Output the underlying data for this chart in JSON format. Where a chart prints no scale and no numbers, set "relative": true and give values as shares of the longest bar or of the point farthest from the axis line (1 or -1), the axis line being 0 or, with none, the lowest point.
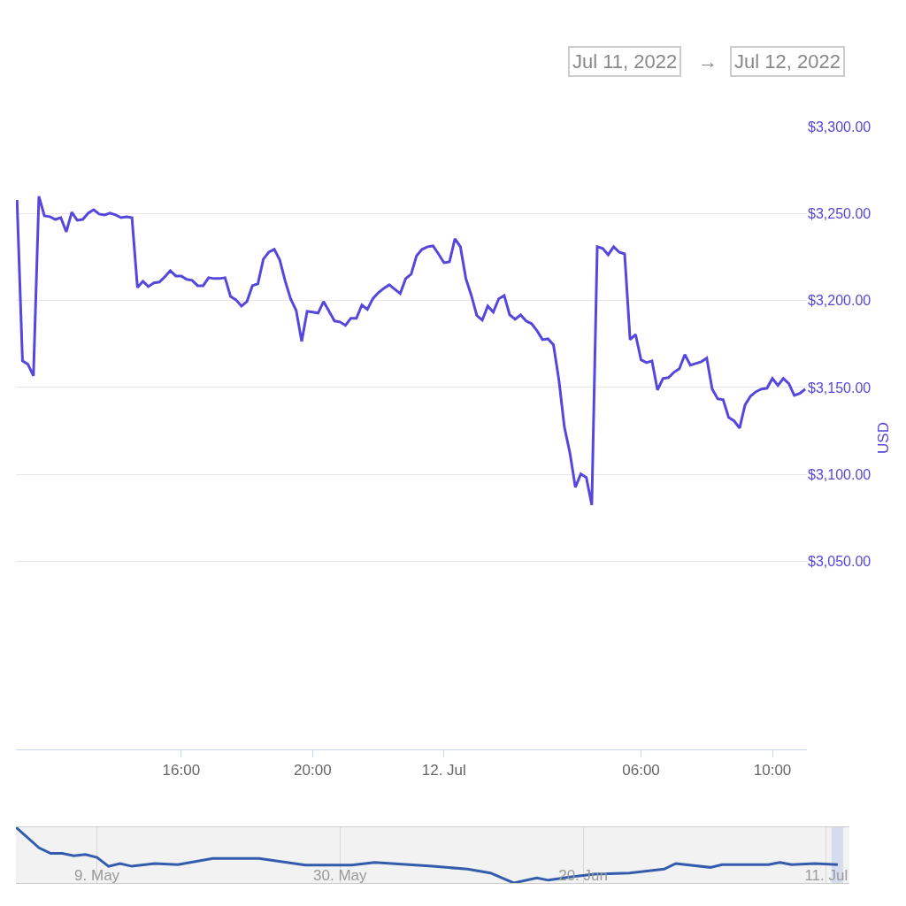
{
  "chart_data": [
    {
      "type": "line",
      "ylabel": "USD",
      "annotations": [
        "Jul 11, 2022",
        "→",
        "Jul 12, 2022"
      ],
      "grid": "y",
      "marker": "none",
      "line_style": "solid",
      "xlim": [
        "2022-07-11T10:58",
        "2022-07-12T11:03"
      ],
      "xticks": [
        {
          "value": "2022-07-11T16:00",
          "label": "16:00"
        },
        {
          "value": "2022-07-11T20:00",
          "label": "20:00"
        },
        {
          "value": "2022-07-12T00:00",
          "label": "12. Jul"
        },
        {
          "value": "2022-07-12T06:00",
          "label": "06:00"
        },
        {
          "value": "2022-07-12T10:00",
          "label": "10:00"
        }
      ],
      "ylim": [
        2942,
        3300
      ],
      "yticks": [
        {
          "value": 3050,
          "label": "$3,050.00"
        },
        {
          "value": 3100,
          "label": "$3,100.00"
        },
        {
          "value": 3150,
          "label": "$3,150.00"
        },
        {
          "value": 3200,
          "label": "$3,200.00"
        },
        {
          "value": 3250,
          "label": "$3,250.00"
        },
        {
          "value": 3300,
          "label": "$3,300.00"
        }
      ],
      "x": [
        "2022-07-11T11:00",
        "2022-07-11T11:10",
        "2022-07-11T11:20",
        "2022-07-11T11:30",
        "2022-07-11T11:40",
        "2022-07-11T11:50",
        "2022-07-11T12:00",
        "2022-07-11T12:10",
        "2022-07-11T12:20",
        "2022-07-11T12:30",
        "2022-07-11T12:40",
        "2022-07-11T12:50",
        "2022-07-11T13:00",
        "2022-07-11T13:10",
        "2022-07-11T13:20",
        "2022-07-11T13:30",
        "2022-07-11T13:40",
        "2022-07-11T13:50",
        "2022-07-11T14:00",
        "2022-07-11T14:10",
        "2022-07-11T14:20",
        "2022-07-11T14:30",
        "2022-07-11T14:40",
        "2022-07-11T14:50",
        "2022-07-11T15:00",
        "2022-07-11T15:10",
        "2022-07-11T15:20",
        "2022-07-11T15:30",
        "2022-07-11T15:40",
        "2022-07-11T15:50",
        "2022-07-11T16:00",
        "2022-07-11T16:10",
        "2022-07-11T16:20",
        "2022-07-11T16:30",
        "2022-07-11T16:40",
        "2022-07-11T16:50",
        "2022-07-11T17:00",
        "2022-07-11T17:10",
        "2022-07-11T17:20",
        "2022-07-11T17:30",
        "2022-07-11T17:40",
        "2022-07-11T17:50",
        "2022-07-11T18:00",
        "2022-07-11T18:10",
        "2022-07-11T18:20",
        "2022-07-11T18:30",
        "2022-07-11T18:40",
        "2022-07-11T18:50",
        "2022-07-11T19:00",
        "2022-07-11T19:10",
        "2022-07-11T19:20",
        "2022-07-11T19:30",
        "2022-07-11T19:40",
        "2022-07-11T19:50",
        "2022-07-11T20:00",
        "2022-07-11T20:10",
        "2022-07-11T20:20",
        "2022-07-11T20:30",
        "2022-07-11T20:40",
        "2022-07-11T20:50",
        "2022-07-11T21:00",
        "2022-07-11T21:10",
        "2022-07-11T21:20",
        "2022-07-11T21:30",
        "2022-07-11T21:40",
        "2022-07-11T21:50",
        "2022-07-11T22:00",
        "2022-07-11T22:10",
        "2022-07-11T22:20",
        "2022-07-11T22:30",
        "2022-07-11T22:40",
        "2022-07-11T22:50",
        "2022-07-11T23:00",
        "2022-07-11T23:10",
        "2022-07-11T23:20",
        "2022-07-11T23:30",
        "2022-07-11T23:40",
        "2022-07-11T23:50",
        "2022-07-12T00:00",
        "2022-07-12T00:10",
        "2022-07-12T00:20",
        "2022-07-12T00:30",
        "2022-07-12T00:40",
        "2022-07-12T00:50",
        "2022-07-12T01:00",
        "2022-07-12T01:10",
        "2022-07-12T01:20",
        "2022-07-12T01:30",
        "2022-07-12T01:40",
        "2022-07-12T01:50",
        "2022-07-12T02:00",
        "2022-07-12T02:10",
        "2022-07-12T02:20",
        "2022-07-12T02:30",
        "2022-07-12T02:40",
        "2022-07-12T02:50",
        "2022-07-12T03:00",
        "2022-07-12T03:10",
        "2022-07-12T03:20",
        "2022-07-12T03:30",
        "2022-07-12T03:40",
        "2022-07-12T03:50",
        "2022-07-12T04:00",
        "2022-07-12T04:10",
        "2022-07-12T04:20",
        "2022-07-12T04:30",
        "2022-07-12T04:40",
        "2022-07-12T04:50",
        "2022-07-12T05:00",
        "2022-07-12T05:10",
        "2022-07-12T05:20",
        "2022-07-12T05:30",
        "2022-07-12T05:40",
        "2022-07-12T05:50",
        "2022-07-12T06:00",
        "2022-07-12T06:10",
        "2022-07-12T06:20",
        "2022-07-12T06:30",
        "2022-07-12T06:40",
        "2022-07-12T06:50",
        "2022-07-12T07:00",
        "2022-07-12T07:10",
        "2022-07-12T07:20",
        "2022-07-12T07:30",
        "2022-07-12T07:40",
        "2022-07-12T07:50",
        "2022-07-12T08:00",
        "2022-07-12T08:10",
        "2022-07-12T08:20",
        "2022-07-12T08:30",
        "2022-07-12T08:40",
        "2022-07-12T08:50",
        "2022-07-12T09:00",
        "2022-07-12T09:10",
        "2022-07-12T09:20",
        "2022-07-12T09:30",
        "2022-07-12T09:40",
        "2022-07-12T09:50",
        "2022-07-12T10:00",
        "2022-07-12T10:10",
        "2022-07-12T10:20",
        "2022-07-12T10:30",
        "2022-07-12T10:40",
        "2022-07-12T10:50",
        "2022-07-12T11:00"
      ],
      "series": [
        {
          "color": "#5547dc",
          "values": [
            3257.8,
            3165.3,
            3163.3,
            3156.7,
            3259.9,
            3248.7,
            3248.2,
            3246.6,
            3247.6,
            3239.5,
            3250.7,
            3246.1,
            3246.6,
            3250.2,
            3252.2,
            3249.7,
            3249.2,
            3250.2,
            3249.2,
            3247.6,
            3248.1,
            3247.6,
            3207.5,
            3211.1,
            3208,
            3210.1,
            3210.6,
            3213.6,
            3217.2,
            3214.1,
            3214.1,
            3212.1,
            3211.6,
            3208.5,
            3208.5,
            3213.1,
            3212.6,
            3212.6,
            3213.1,
            3202.4,
            3200.4,
            3196.8,
            3199.4,
            3208.5,
            3209.6,
            3223.8,
            3227.8,
            3229.4,
            3223.3,
            3211.1,
            3200.9,
            3194.3,
            3176.5,
            3193.8,
            3193.3,
            3192.8,
            3199.4,
            3193.8,
            3188.2,
            3187.7,
            3185.7,
            3189.8,
            3189.8,
            3197.4,
            3194.9,
            3201,
            3204.5,
            3207,
            3209,
            3206.5,
            3204,
            3212.6,
            3215.1,
            3225.8,
            3229.4,
            3230.9,
            3231.4,
            3226.8,
            3221.7,
            3222.2,
            3235.5,
            3230.9,
            3212.6,
            3202.9,
            3191.3,
            3188.7,
            3196.8,
            3193.3,
            3201,
            3202.9,
            3191.8,
            3189.2,
            3191.8,
            3188.2,
            3186.7,
            3182.6,
            3177.5,
            3178,
            3174.5,
            3154.2,
            3127.2,
            3112.5,
            3092.7,
            3100.3,
            3098.3,
            3082.5,
            3230.9,
            3229.9,
            3226.3,
            3230.9,
            3227.8,
            3226.8,
            3177.5,
            3180.5,
            3165.9,
            3164.3,
            3165.3,
            3148.6,
            3155.2,
            3155.7,
            3158.7,
            3160.8,
            3168.9,
            3162.8,
            3163.8,
            3164.8,
            3166.9,
            3149.1,
            3143.5,
            3143,
            3132.8,
            3130.8,
            3126.7,
            3140,
            3145,
            3147.6,
            3149.1,
            3149.6,
            3155.2,
            3151.2,
            3155.2,
            3152.2,
            3145.5,
            3146.6,
            3149.1
          ]
        }
      ]
    },
    {
      "type": "line",
      "relative": true,
      "grid": "x",
      "marker": "none",
      "line_style": "solid",
      "xlim": [
        "2022-05-02",
        "2022-07-13"
      ],
      "xticks": [
        {
          "value": "2022-05-09",
          "label": "9. May"
        },
        {
          "value": "2022-05-30",
          "label": "30. May"
        },
        {
          "value": "2022-06-20",
          "label": "20. Jun"
        },
        {
          "value": "2022-07-11",
          "label": "11. Jul"
        }
      ],
      "bands": [
        {
          "axis": "x",
          "from": "2022-07-11T11:00",
          "to": "2022-07-12T11:00",
          "color": "#ccd6eb"
        }
      ],
      "x": [
        "2022-05-02",
        "2022-05-04",
        "2022-05-05",
        "2022-05-06",
        "2022-05-07",
        "2022-05-08",
        "2022-05-09",
        "2022-05-10",
        "2022-05-11",
        "2022-05-12",
        "2022-05-14",
        "2022-05-16",
        "2022-05-19",
        "2022-05-23",
        "2022-05-27",
        "2022-05-30",
        "2022-05-31",
        "2022-06-02",
        "2022-06-07",
        "2022-06-10",
        "2022-06-12",
        "2022-06-14",
        "2022-06-16",
        "2022-06-17",
        "2022-06-19",
        "2022-06-21",
        "2022-06-24",
        "2022-06-27",
        "2022-06-28",
        "2022-07-01",
        "2022-07-02",
        "2022-07-06",
        "2022-07-07",
        "2022-07-08",
        "2022-07-10",
        "2022-07-12"
      ],
      "series": [
        {
          "color": "#335cad",
          "values": [
            1,
            0.63,
            0.53,
            0.53,
            0.49,
            0.51,
            0.46,
            0.3,
            0.35,
            0.3,
            0.35,
            0.33,
            0.44,
            0.44,
            0.32,
            0.32,
            0.32,
            0.37,
            0.3,
            0.25,
            0.18,
            0,
            0.09,
            0.05,
            0.11,
            0.16,
            0.18,
            0.25,
            0.35,
            0.28,
            0.33,
            0.33,
            0.37,
            0.33,
            0.35,
            0.33
          ]
        }
      ]
    }
  ]
}
